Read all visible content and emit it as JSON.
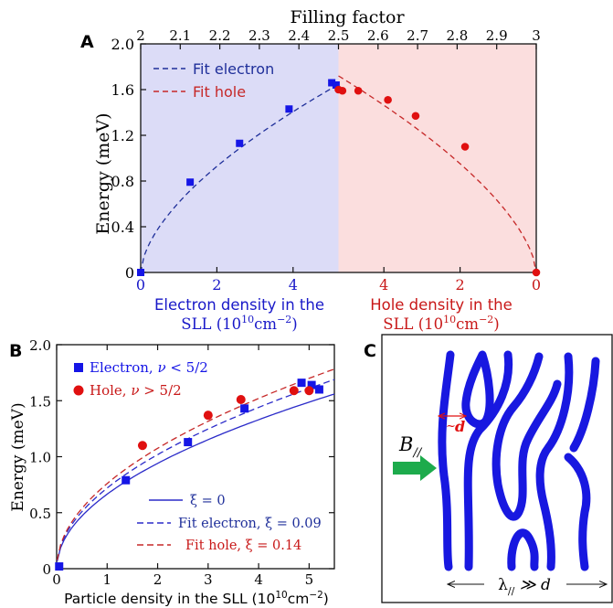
{
  "chart_data": [
    {
      "panel": "A",
      "type": "scatter",
      "top_axis": {
        "title": "Filling factor",
        "ticks": [
          "2",
          "2.1",
          "2.2",
          "2.3",
          "2.4",
          "2.5",
          "2.6",
          "2.7",
          "2.8",
          "2.9",
          "3"
        ],
        "range": [
          2,
          3
        ]
      },
      "ylabel": "Energy (meV)",
      "ylim": [
        0,
        2.0
      ],
      "yticks": [
        "0",
        "0.4",
        "0.8",
        "1.2",
        "1.6",
        "2.0"
      ],
      "xlabel_left": [
        "Electron density in the",
        "SLL (10",
        "10",
        "cm",
        "−2",
        ")"
      ],
      "xlabel_right": [
        "Hole density in the",
        "SLL (10",
        "10",
        "cm",
        "−2",
        ")"
      ],
      "bottom_left_ticks": [
        "0",
        "2",
        "4"
      ],
      "bottom_right_ticks": [
        "4",
        "2",
        "0"
      ],
      "legend": [
        {
          "label": "Fit electron",
          "color": "#1f2f9a",
          "style": "dashed"
        },
        {
          "label": "Fit hole",
          "color": "#c62828",
          "style": "dashed"
        }
      ],
      "series": [
        {
          "name": "electron",
          "color": "#1515e6",
          "marker": "square",
          "points": [
            [
              2.0,
              0.0
            ],
            [
              2.125,
              0.79
            ],
            [
              2.25,
              1.13
            ],
            [
              2.375,
              1.43
            ],
            [
              2.483,
              1.66
            ],
            [
              2.494,
              1.64
            ]
          ]
        },
        {
          "name": "hole",
          "color": "#e01010",
          "marker": "circle",
          "points": [
            [
              2.5,
              1.6
            ],
            [
              2.51,
              1.59
            ],
            [
              2.55,
              1.59
            ],
            [
              2.625,
              1.51
            ],
            [
              2.695,
              1.37
            ],
            [
              2.82,
              1.1
            ],
            [
              3.0,
              0.0
            ]
          ]
        }
      ],
      "shading": {
        "left": "#dcdcf7",
        "right": "#fbdede"
      },
      "panel_label": "A"
    },
    {
      "panel": "B",
      "type": "scatter",
      "xlabel": [
        "Particle density in the SLL (10",
        "10",
        "cm",
        "−2",
        ")"
      ],
      "ylabel": "Energy (meV)",
      "xlim": [
        0,
        5.5
      ],
      "ylim": [
        0,
        2.0
      ],
      "xticks": [
        "0",
        "1",
        "2",
        "3",
        "4",
        "5"
      ],
      "yticks": [
        "0",
        "0.5",
        "1.0",
        "1.5",
        "2.0"
      ],
      "legend_top": [
        {
          "prefix": "Electron, ",
          "sym": "ν",
          "suffix": " < 5/2",
          "color": "#1515e6",
          "marker": "square"
        },
        {
          "prefix": "Hole, ",
          "sym": "ν",
          "suffix": " > 5/2",
          "color": "#e01010",
          "marker": "circle"
        }
      ],
      "legend_bottom": [
        {
          "label": "ξ = 0",
          "color": "#2b2bc9",
          "style": "solid"
        },
        {
          "label": "Fit electron, ξ = 0.09",
          "color": "#2b2bc9",
          "style": "dashed"
        },
        {
          "label": "Fit hole,  ξ =  0.14",
          "color": "#c62828",
          "style": "dashed"
        }
      ],
      "series": [
        {
          "name": "electron",
          "color": "#1515e6",
          "marker": "square",
          "points": [
            [
              0.05,
              0.02
            ],
            [
              1.37,
              0.79
            ],
            [
              2.6,
              1.13
            ],
            [
              3.72,
              1.43
            ],
            [
              4.85,
              1.66
            ],
            [
              5.05,
              1.64
            ],
            [
              5.2,
              1.6
            ]
          ]
        },
        {
          "name": "hole",
          "color": "#e01010",
          "marker": "circle",
          "points": [
            [
              1.7,
              1.1
            ],
            [
              3.0,
              1.37
            ],
            [
              3.65,
              1.51
            ],
            [
              4.7,
              1.59
            ],
            [
              5.0,
              1.59
            ]
          ]
        }
      ],
      "panel_label": "B"
    }
  ],
  "panel_c": {
    "label": "C",
    "field_label": "B",
    "field_sub": "//",
    "d_label": "d",
    "bottom_label": "λ",
    "bottom_sub": "//",
    "bottom_rel": " ≫ d",
    "stripe_color": "#1818e0",
    "arrow_color": "#1dab4c"
  }
}
